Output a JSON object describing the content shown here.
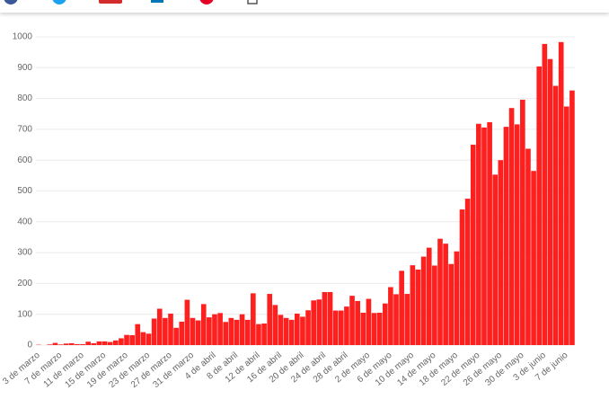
{
  "chart_data": {
    "type": "bar",
    "categories": [
      "3 de marzo",
      null,
      null,
      null,
      "7 de marzo",
      null,
      null,
      null,
      "11 de marzo",
      null,
      null,
      null,
      "15 de marzo",
      null,
      null,
      null,
      "19 de marzo",
      null,
      null,
      null,
      "23 de marzo",
      null,
      null,
      null,
      "27 de marzo",
      null,
      null,
      null,
      "31 de marzo",
      null,
      null,
      null,
      "4 de abril",
      null,
      null,
      null,
      "8 de abril",
      null,
      null,
      null,
      "12 de abril",
      null,
      null,
      null,
      "16 de abril",
      null,
      null,
      null,
      "20 de abril",
      null,
      null,
      null,
      "24 de abril",
      null,
      null,
      null,
      "28 de abril",
      null,
      null,
      null,
      "2 de mayo",
      null,
      null,
      null,
      "6 de mayo",
      null,
      null,
      null,
      "10 de mayo",
      null,
      null,
      null,
      "14 de mayo",
      null,
      null,
      null,
      "18 de mayo",
      null,
      null,
      null,
      "22 de mayo",
      null,
      null,
      null,
      "26 de mayo",
      null,
      null,
      null,
      "30 de mayo",
      null,
      null,
      null,
      "3 de junio",
      null,
      null,
      null,
      "7 de junio",
      null
    ],
    "values": [
      1,
      0,
      2,
      7,
      2,
      5,
      6,
      3,
      3,
      11,
      6,
      12,
      12,
      10,
      15,
      22,
      33,
      32,
      68,
      42,
      37,
      86,
      118,
      88,
      102,
      56,
      76,
      147,
      88,
      80,
      133,
      90,
      100,
      104,
      75,
      88,
      82,
      100,
      82,
      168,
      68,
      70,
      166,
      130,
      98,
      88,
      82,
      102,
      92,
      113,
      145,
      148,
      172,
      172,
      112,
      112,
      125,
      160,
      143,
      105,
      150,
      104,
      105,
      135,
      188,
      165,
      241,
      166,
      259,
      245,
      287,
      316,
      258,
      345,
      329,
      263,
      304,
      440,
      475,
      650,
      718,
      706,
      723,
      553,
      600,
      708,
      769,
      716,
      796,
      637,
      565,
      904,
      977,
      928,
      841,
      983,
      774,
      826
    ],
    "color": "#fe1f1f",
    "ylim": [
      0,
      1000
    ],
    "yticks": [
      0,
      100,
      200,
      300,
      400,
      500,
      600,
      700,
      800,
      900,
      1000
    ],
    "grid": true
  }
}
